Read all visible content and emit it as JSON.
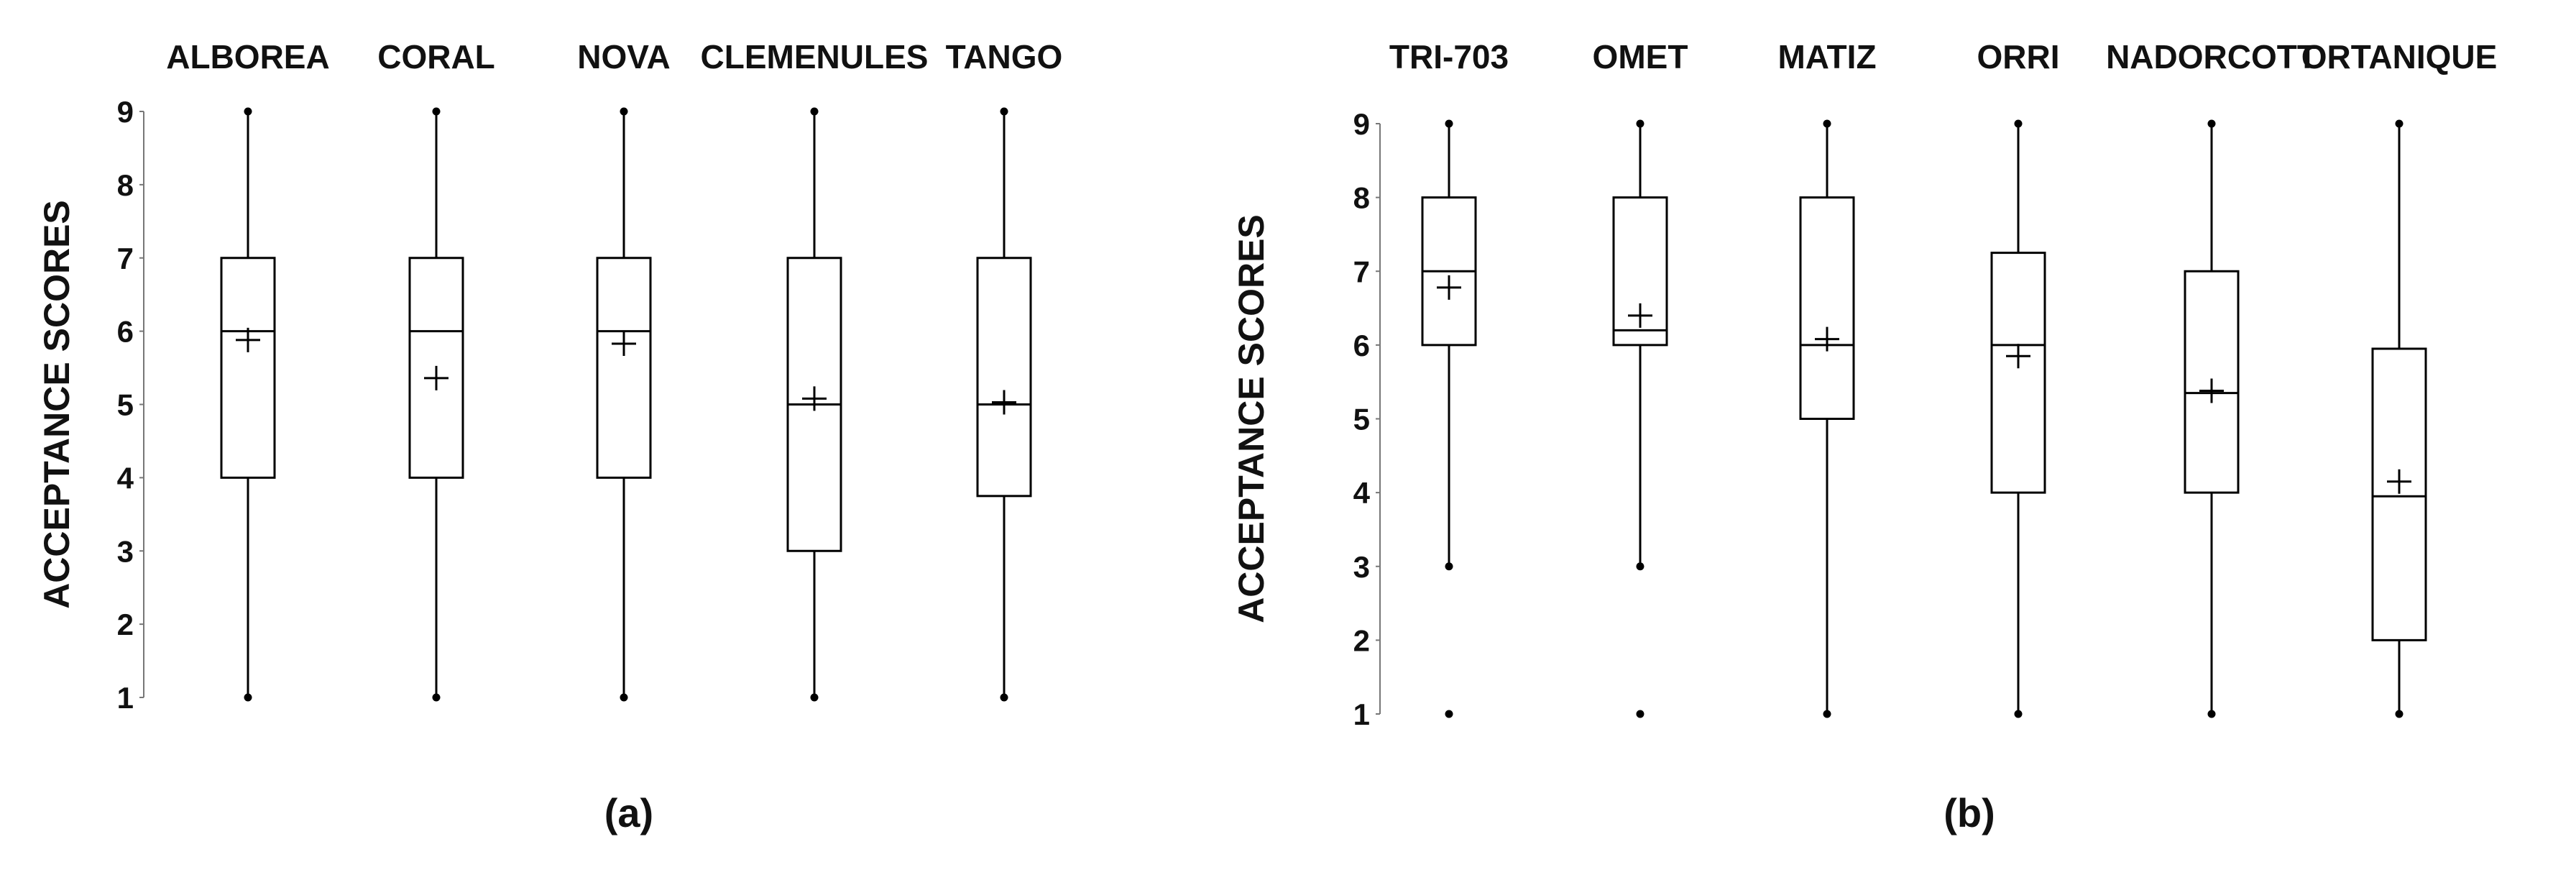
{
  "chart_data": [
    {
      "type": "boxplot",
      "panel_label": "(a)",
      "ylabel": "ACCEPTANCE  SCORES",
      "ylim": [
        1,
        9
      ],
      "yticks": [
        "1",
        "2",
        "3",
        "4",
        "5",
        "6",
        "7",
        "8",
        "9"
      ],
      "categories": [
        "ALBOREA",
        "CORAL",
        "NOVA",
        "CLEMENULES",
        "TANGO"
      ],
      "boxes": [
        {
          "min": 1,
          "q1": 4,
          "median": 6,
          "q3": 7,
          "max": 9,
          "mean": 5.88,
          "outliers": []
        },
        {
          "min": 1,
          "q1": 4,
          "median": 6,
          "q3": 7,
          "max": 9,
          "mean": 5.36,
          "outliers": []
        },
        {
          "min": 1,
          "q1": 4,
          "median": 6,
          "q3": 7,
          "max": 9,
          "mean": 5.83,
          "outliers": []
        },
        {
          "min": 1,
          "q1": 3,
          "median": 5,
          "q3": 7,
          "max": 9,
          "mean": 5.08,
          "outliers": []
        },
        {
          "min": 1,
          "q1": 3.75,
          "median": 5,
          "q3": 7,
          "max": 9,
          "mean": 5.03,
          "outliers": []
        }
      ]
    },
    {
      "type": "boxplot",
      "panel_label": "(b)",
      "ylabel": "ACCEPTANCE SCORES",
      "ylim": [
        1,
        9
      ],
      "yticks": [
        "1",
        "2",
        "3",
        "4",
        "5",
        "6",
        "7",
        "8",
        "9"
      ],
      "categories": [
        "TRI-703",
        "OMET",
        "MATIZ",
        "ORRI",
        "NADORCOTT",
        "ORTANIQUE"
      ],
      "boxes": [
        {
          "min": 3,
          "q1": 6,
          "median": 7,
          "q3": 8,
          "max": 9,
          "mean": 6.78,
          "outliers": [
            1
          ]
        },
        {
          "min": 3,
          "q1": 6,
          "median": 6.2,
          "q3": 8,
          "max": 9,
          "mean": 6.4,
          "outliers": [
            1
          ]
        },
        {
          "min": 1,
          "q1": 5,
          "median": 6,
          "q3": 8,
          "max": 9,
          "mean": 6.08,
          "outliers": []
        },
        {
          "min": 1,
          "q1": 4,
          "median": 6,
          "q3": 7.25,
          "max": 9,
          "mean": 5.85,
          "outliers": []
        },
        {
          "min": 1,
          "q1": 4,
          "median": 5.35,
          "q3": 7,
          "max": 9,
          "mean": 5.38,
          "outliers": []
        },
        {
          "min": 1,
          "q1": 2,
          "median": 3.95,
          "q3": 5.95,
          "max": 9,
          "mean": 4.15,
          "outliers": []
        }
      ]
    }
  ]
}
